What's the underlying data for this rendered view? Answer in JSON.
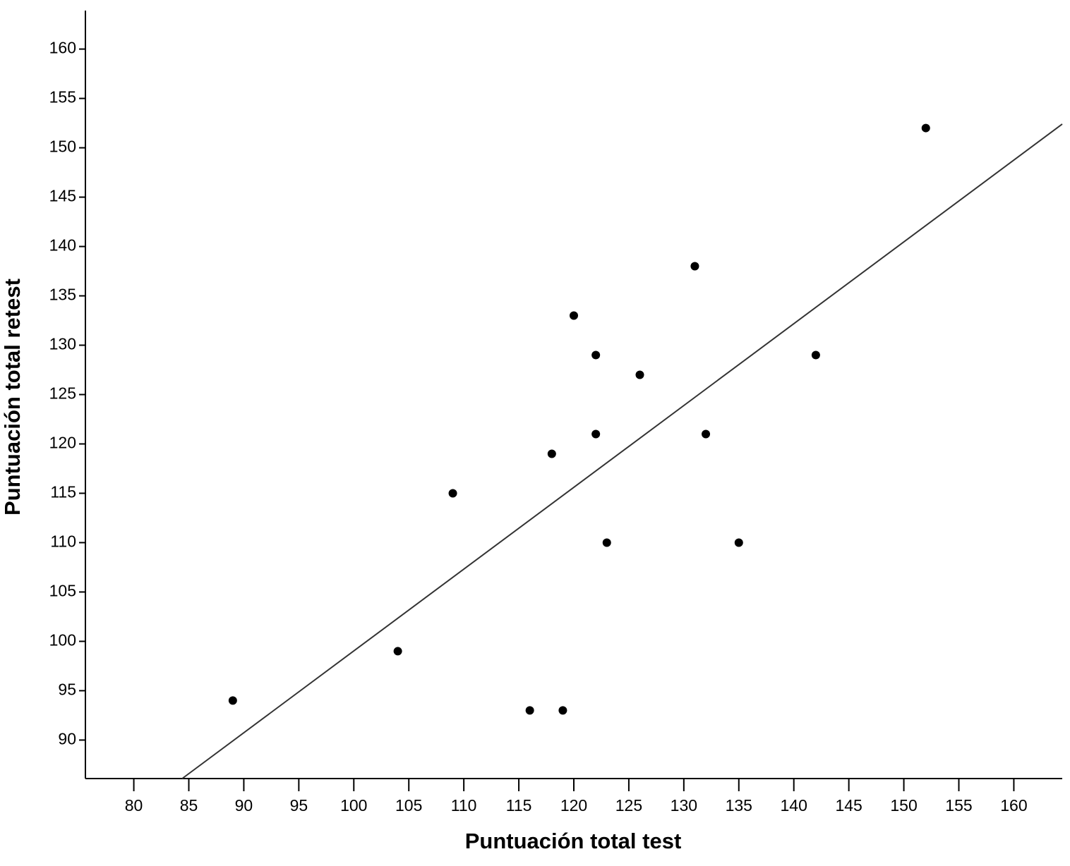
{
  "chart_data": {
    "type": "scatter",
    "x_label": "Puntuación total test",
    "y_label": "Puntuación total retest",
    "series": [
      {
        "color": "#000000",
        "x": [
          89,
          104,
          109,
          116,
          119,
          118,
          120,
          122,
          122,
          123,
          126,
          131,
          132,
          135,
          142,
          152
        ],
        "values": [
          94,
          99,
          115,
          93,
          93,
          119,
          133,
          129,
          121,
          110,
          127,
          138,
          121,
          110,
          129,
          152
        ]
      }
    ],
    "fit_line": {
      "color": "#333333",
      "x": [
        84.4,
        164.4
      ],
      "y": [
        86.1,
        152.4
      ]
    },
    "xlim": [
      75.6,
      164.4
    ],
    "ylim": [
      86.1,
      163.9
    ],
    "xticks": [
      80,
      85,
      90,
      95,
      100,
      105,
      110,
      115,
      120,
      125,
      130,
      135,
      140,
      145,
      150,
      155,
      160
    ],
    "yticks": [
      90,
      95,
      100,
      105,
      110,
      115,
      120,
      125,
      130,
      135,
      140,
      145,
      150,
      155,
      160
    ],
    "grid": false
  }
}
